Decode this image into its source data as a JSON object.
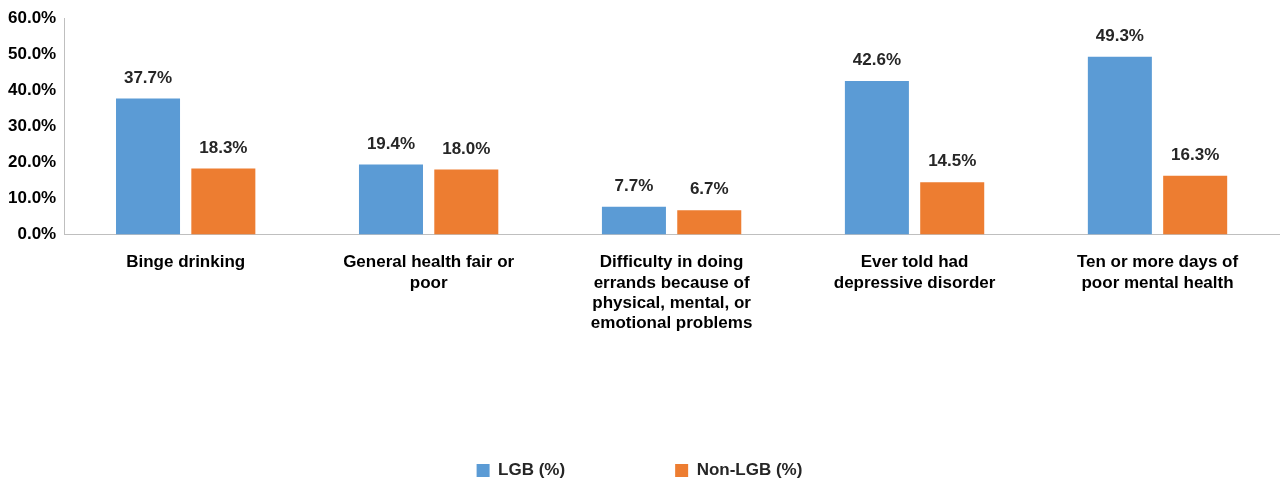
{
  "chart_data": {
    "type": "bar",
    "categories": [
      "Binge drinking",
      "General health fair or poor",
      "Difficulty in doing errands because of physical, mental, or emotional problems",
      "Ever told had depressive disorder",
      "Ten or more days of poor mental health"
    ],
    "series": [
      {
        "name": "LGB (%)",
        "color": "#5b9bd5",
        "values": [
          37.7,
          19.4,
          7.7,
          42.6,
          49.3
        ],
        "value_labels": [
          "37.7%",
          "19.4%",
          "7.7%",
          "42.6%",
          "49.3%"
        ]
      },
      {
        "name": "Non-LGB (%)",
        "color": "#ed7d31",
        "values": [
          18.3,
          18.0,
          6.7,
          14.5,
          16.3
        ],
        "value_labels": [
          "18.3%",
          "18.0%",
          "6.7%",
          "14.5%",
          "16.3%"
        ]
      }
    ],
    "ylim": [
      0,
      60
    ],
    "yticks": [
      {
        "value": 0,
        "label": "0.0%"
      },
      {
        "value": 10,
        "label": "10.0%"
      },
      {
        "value": 20,
        "label": "20.0%"
      },
      {
        "value": 30,
        "label": "30.0%"
      },
      {
        "value": 40,
        "label": "40.0%"
      },
      {
        "value": 50,
        "label": "50.0%"
      },
      {
        "value": 60,
        "label": "60.0%"
      }
    ],
    "grid": false,
    "legend": "bottom"
  }
}
